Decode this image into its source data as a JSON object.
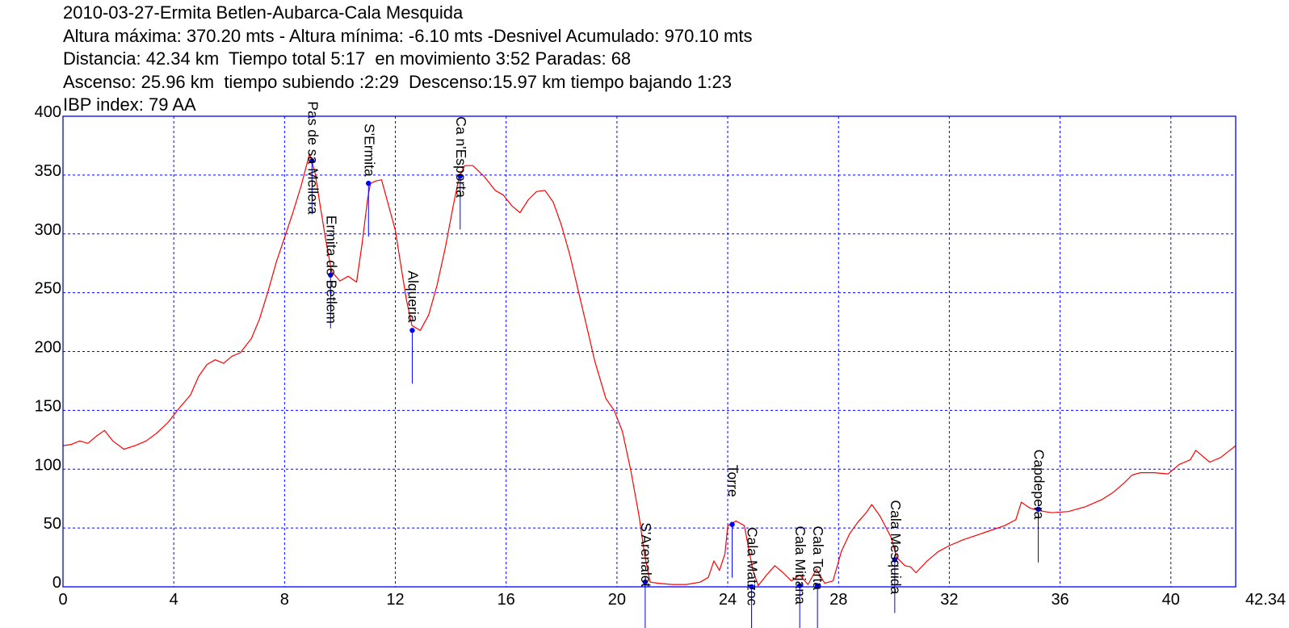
{
  "header": {
    "line1": "2010-03-27-Ermita Betlen-Aubarca-Cala Mesquida",
    "line2": "Altura máxima: 370.20 mts - Altura mínima: -6.10 mts -Desnivel Acumulado: 970.10 mts",
    "line3": "Distancia: 42.34 km  Tiempo total 5:17  en movimiento 3:52 Paradas: 68",
    "line4": "Ascenso: 25.96 km  tiempo subiendo :2:29  Descenso:15.97 km tiempo bajando 1:23",
    "line5": "IBP index: 79 AA"
  },
  "colors": {
    "profile": "#ff0000",
    "axis": "#0000ff",
    "grid": "#0000ff",
    "marker": "#0000ff",
    "text": "#000000"
  },
  "chart_data": {
    "type": "line",
    "title": "",
    "xlabel": "",
    "ylabel": "",
    "xlim": [
      0,
      42.34
    ],
    "ylim": [
      0,
      400
    ],
    "grid": true,
    "x_ticks": [
      0,
      4,
      8,
      12,
      16,
      20,
      24,
      28,
      32,
      36,
      40,
      42.34
    ],
    "x_tick_labels": [
      "0",
      "4",
      "8",
      "12",
      "16",
      "20",
      "24",
      "28",
      "32",
      "36",
      "40",
      "42.34"
    ],
    "y_ticks": [
      0,
      50,
      100,
      150,
      200,
      250,
      300,
      350,
      400
    ],
    "y_tick_labels": [
      "0",
      "50",
      "100",
      "150",
      "200",
      "250",
      "300",
      "350",
      "400"
    ],
    "series": [
      {
        "points": [
          [
            0,
            120
          ],
          [
            0.3,
            121
          ],
          [
            0.6,
            124
          ],
          [
            0.9,
            122
          ],
          [
            1.2,
            128
          ],
          [
            1.5,
            133
          ],
          [
            1.8,
            124
          ],
          [
            2.2,
            117
          ],
          [
            2.6,
            120
          ],
          [
            3.0,
            124
          ],
          [
            3.4,
            131
          ],
          [
            3.8,
            140
          ],
          [
            4.2,
            152
          ],
          [
            4.6,
            163
          ],
          [
            4.9,
            179
          ],
          [
            5.2,
            189
          ],
          [
            5.5,
            193
          ],
          [
            5.8,
            190
          ],
          [
            6.1,
            196
          ],
          [
            6.4,
            199
          ],
          [
            6.8,
            211
          ],
          [
            7.1,
            228
          ],
          [
            7.4,
            251
          ],
          [
            7.7,
            276
          ],
          [
            8.0,
            297
          ],
          [
            8.3,
            318
          ],
          [
            8.6,
            341
          ],
          [
            8.8,
            359
          ],
          [
            8.9,
            368
          ],
          [
            9.1,
            352
          ],
          [
            9.3,
            322
          ],
          [
            9.5,
            293
          ],
          [
            9.7,
            268
          ],
          [
            10.0,
            260
          ],
          [
            10.3,
            264
          ],
          [
            10.6,
            259
          ],
          [
            10.8,
            292
          ],
          [
            11.0,
            330
          ],
          [
            11.1,
            343
          ],
          [
            11.3,
            345
          ],
          [
            11.5,
            346
          ],
          [
            11.7,
            329
          ],
          [
            12.0,
            303
          ],
          [
            12.2,
            273
          ],
          [
            12.4,
            244
          ],
          [
            12.6,
            222
          ],
          [
            12.9,
            218
          ],
          [
            13.2,
            231
          ],
          [
            13.5,
            256
          ],
          [
            13.8,
            288
          ],
          [
            14.1,
            325
          ],
          [
            14.3,
            348
          ],
          [
            14.5,
            358
          ],
          [
            14.8,
            358
          ],
          [
            15.2,
            349
          ],
          [
            15.6,
            337
          ],
          [
            15.9,
            333
          ],
          [
            16.2,
            324
          ],
          [
            16.5,
            318
          ],
          [
            16.8,
            329
          ],
          [
            17.1,
            336
          ],
          [
            17.4,
            337
          ],
          [
            17.7,
            327
          ],
          [
            18.0,
            307
          ],
          [
            18.3,
            282
          ],
          [
            18.6,
            252
          ],
          [
            18.9,
            222
          ],
          [
            19.2,
            192
          ],
          [
            19.6,
            160
          ],
          [
            19.9,
            150
          ],
          [
            20.2,
            132
          ],
          [
            20.5,
            99
          ],
          [
            20.8,
            60
          ],
          [
            21.0,
            27
          ],
          [
            21.2,
            4
          ],
          [
            21.5,
            3
          ],
          [
            22.0,
            2
          ],
          [
            22.5,
            2
          ],
          [
            23.0,
            4
          ],
          [
            23.3,
            8
          ],
          [
            23.5,
            22
          ],
          [
            23.7,
            14
          ],
          [
            23.9,
            28
          ],
          [
            24.0,
            52
          ],
          [
            24.3,
            56
          ],
          [
            24.6,
            52
          ],
          [
            24.9,
            15
          ],
          [
            25.1,
            1
          ],
          [
            25.4,
            10
          ],
          [
            25.7,
            18
          ],
          [
            26.0,
            12
          ],
          [
            26.3,
            5
          ],
          [
            26.6,
            10
          ],
          [
            26.9,
            2
          ],
          [
            27.2,
            15
          ],
          [
            27.5,
            3
          ],
          [
            27.8,
            5
          ],
          [
            28.1,
            30
          ],
          [
            28.4,
            45
          ],
          [
            28.7,
            55
          ],
          [
            29.0,
            63
          ],
          [
            29.2,
            70
          ],
          [
            29.5,
            60
          ],
          [
            29.9,
            42
          ],
          [
            30.1,
            25
          ],
          [
            30.4,
            18
          ],
          [
            30.6,
            17
          ],
          [
            30.8,
            12
          ],
          [
            31.2,
            22
          ],
          [
            31.6,
            30
          ],
          [
            32.0,
            35
          ],
          [
            32.5,
            40
          ],
          [
            33.0,
            44
          ],
          [
            33.5,
            48
          ],
          [
            34.0,
            52
          ],
          [
            34.4,
            57
          ],
          [
            34.6,
            72
          ],
          [
            34.9,
            67
          ],
          [
            35.2,
            65
          ],
          [
            35.7,
            63
          ],
          [
            36.3,
            64
          ],
          [
            36.9,
            68
          ],
          [
            37.5,
            74
          ],
          [
            37.9,
            80
          ],
          [
            38.3,
            88
          ],
          [
            38.6,
            95
          ],
          [
            38.9,
            97
          ],
          [
            39.4,
            97
          ],
          [
            39.9,
            96
          ],
          [
            40.3,
            104
          ],
          [
            40.7,
            108
          ],
          [
            40.9,
            116
          ],
          [
            41.1,
            112
          ],
          [
            41.4,
            106
          ],
          [
            41.8,
            110
          ],
          [
            42.34,
            120
          ]
        ]
      }
    ],
    "annotations": [
      {
        "label": "Pas de sa Mellera",
        "x": 8.99,
        "y": 362
      },
      {
        "label": "Ermita de Betlem",
        "x": 9.66,
        "y": 265
      },
      {
        "label": "S'Ermita",
        "x": 11.03,
        "y": 343
      },
      {
        "label": "Alqueria",
        "x": 12.61,
        "y": 218
      },
      {
        "label": "Ca n'Esporta",
        "x": 14.34,
        "y": 349
      },
      {
        "label": "S'Arenalet",
        "x": 21.02,
        "y": 4
      },
      {
        "label": "Torre",
        "x": 24.16,
        "y": 53
      },
      {
        "label": "Cala Matzoc",
        "x": 24.86,
        "y": 0
      },
      {
        "label": "Cala Mitjana",
        "x": 26.6,
        "y": 1
      },
      {
        "label": "Cala Torta",
        "x": 27.24,
        "y": 1
      },
      {
        "label": "Cala Mesquida",
        "x": 30.03,
        "y": 23
      },
      {
        "label": "Capdepera",
        "x": 35.21,
        "y": 66
      }
    ]
  }
}
